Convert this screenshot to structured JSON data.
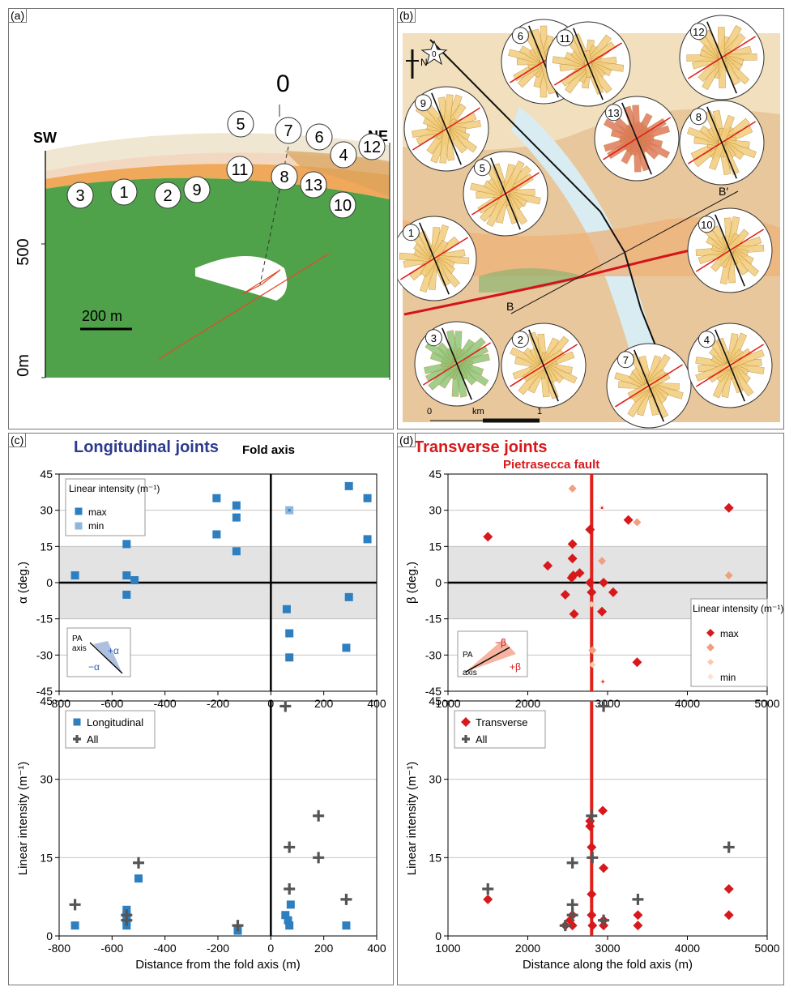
{
  "panel_a": {
    "label": "(a)",
    "sw": "SW",
    "ne": "NE",
    "zero": "0",
    "y500": "500",
    "y0": "0m",
    "scale": "200 m",
    "stations": [
      "3",
      "1",
      "2",
      "9",
      "5",
      "11",
      "7",
      "6",
      "8",
      "13",
      "4",
      "12",
      "10"
    ]
  },
  "panel_b": {
    "label": "(b)",
    "north": "N",
    "star": "0",
    "scale_start": "0",
    "scale_unit": "km",
    "scale_end": "1",
    "B": "B",
    "Bprime": "B′",
    "roses": [
      "6",
      "11",
      "12",
      "9",
      "13",
      "8",
      "5",
      "1",
      "10",
      "3",
      "2",
      "7",
      "4"
    ]
  },
  "chart_data": [
    {
      "type": "scatter",
      "panel": "(c)",
      "title": "Longitudinal joints",
      "annotation": "Fold axis",
      "xlim": [
        -800,
        400
      ],
      "ylim": [
        -45,
        45
      ],
      "ylabel": "α (deg.)",
      "xticks": [
        "-800",
        "-600",
        "-400",
        "-200",
        "0",
        "200",
        "400"
      ],
      "yticks": [
        "45",
        "30",
        "15",
        "0",
        "-15",
        "-30",
        "-45"
      ],
      "legend_title": "Linear intensity (m⁻¹)",
      "legend": [
        "max",
        "min"
      ],
      "inset": {
        "pa": "PA",
        "axis": "axis",
        "plus": "+α",
        "minus": "−α"
      },
      "colors": {
        "max": "#2e7fc0",
        "min": "#8fb7de"
      },
      "series": [
        {
          "name": "max",
          "points": [
            [
              -740,
              3
            ],
            [
              -545,
              16
            ],
            [
              -545,
              3
            ],
            [
              -545,
              -5
            ],
            [
              -515,
              1
            ],
            [
              -205,
              35
            ],
            [
              -205,
              20
            ],
            [
              -130,
              32
            ],
            [
              -130,
              27
            ],
            [
              -130,
              13
            ],
            [
              295,
              40
            ],
            [
              365,
              35
            ],
            [
              365,
              18
            ],
            [
              60,
              -11
            ],
            [
              70,
              -21
            ],
            [
              70,
              -31
            ],
            [
              295,
              -6
            ],
            [
              285,
              -27
            ]
          ]
        },
        {
          "name": "min",
          "points": [
            [
              70,
              30
            ]
          ]
        }
      ]
    },
    {
      "type": "scatter",
      "panel": "(c)",
      "xlim": [
        -800,
        400
      ],
      "ylim": [
        0,
        45
      ],
      "xlabel": "Distance from the fold axis (m)",
      "ylabel": "Linear intensity (m⁻¹)",
      "xticks": [
        "-800",
        "-600",
        "-400",
        "-200",
        "0",
        "200",
        "400"
      ],
      "yticks": [
        "45",
        "30",
        "15",
        "0"
      ],
      "legend": [
        "Longitudinal",
        "All"
      ],
      "series": [
        {
          "name": "Longitudinal",
          "points": [
            [
              -740,
              2
            ],
            [
              -545,
              5
            ],
            [
              -545,
              4
            ],
            [
              -545,
              3
            ],
            [
              -545,
              2
            ],
            [
              -500,
              11
            ],
            [
              -125,
              1
            ],
            [
              55,
              4
            ],
            [
              65,
              3
            ],
            [
              70,
              2
            ],
            [
              75,
              6
            ],
            [
              285,
              2
            ]
          ]
        },
        {
          "name": "All",
          "points": [
            [
              -740,
              6
            ],
            [
              -545,
              4
            ],
            [
              -545,
              3
            ],
            [
              -500,
              14
            ],
            [
              -125,
              2
            ],
            [
              55,
              44
            ],
            [
              70,
              17
            ],
            [
              70,
              9
            ],
            [
              180,
              23
            ],
            [
              180,
              15
            ],
            [
              285,
              7
            ]
          ]
        }
      ]
    },
    {
      "type": "scatter",
      "panel": "(d)",
      "title": "Transverse joints",
      "annotation": "Pietrasecca fault",
      "xlim": [
        1000,
        5000
      ],
      "ylim": [
        -45,
        45
      ],
      "ylabel": "β (deg.)",
      "xticks": [
        "1000",
        "2000",
        "3000",
        "4000",
        "5000"
      ],
      "yticks": [
        "45",
        "30",
        "15",
        "0",
        "-15",
        "-30",
        "-45"
      ],
      "fault_x": 2800,
      "legend_title": "Linear intensity (m⁻¹)",
      "legend": [
        "max",
        "",
        "",
        "min"
      ],
      "inset": {
        "pa": "PA",
        "axis": "axis",
        "plus": "+β",
        "minus": "−β"
      },
      "colors": {
        "max": "#d7191c",
        "fault": "#e0201b"
      },
      "series": [
        {
          "name": "max",
          "points": [
            [
              1500,
              19
            ],
            [
              2250,
              7
            ],
            [
              2470,
              -5
            ],
            [
              2560,
              16
            ],
            [
              2560,
              10
            ],
            [
              2550,
              2
            ],
            [
              2570,
              3
            ],
            [
              2580,
              -13
            ],
            [
              2650,
              4
            ],
            [
              2780,
              22
            ],
            [
              2780,
              0
            ],
            [
              2800,
              -4
            ],
            [
              2930,
              -12
            ],
            [
              2950,
              0
            ],
            [
              3070,
              -4
            ],
            [
              3260,
              26
            ],
            [
              3370,
              -33
            ],
            [
              4520,
              31
            ]
          ]
        },
        {
          "name": "mid",
          "points": [
            [
              2560,
              39
            ],
            [
              2930,
              9
            ],
            [
              3370,
              25
            ],
            [
              4520,
              3
            ],
            [
              2810,
              -28
            ]
          ]
        },
        {
          "name": "small",
          "points": [
            [
              2810,
              -34
            ],
            [
              2800,
              -9
            ]
          ]
        },
        {
          "name": "min",
          "points": [
            [
              2930,
              31
            ],
            [
              2940,
              -41
            ]
          ]
        }
      ]
    },
    {
      "type": "scatter",
      "panel": "(d)",
      "xlim": [
        1000,
        5000
      ],
      "ylim": [
        0,
        45
      ],
      "xlabel": "Distance along the fold axis (m)",
      "ylabel": "Linear intensity (m⁻¹)",
      "xticks": [
        "1000",
        "2000",
        "3000",
        "4000",
        "5000"
      ],
      "yticks": [
        "45",
        "30",
        "15",
        "0"
      ],
      "legend": [
        "Transverse",
        "All"
      ],
      "series": [
        {
          "name": "Transverse",
          "points": [
            [
              1500,
              7
            ],
            [
              2470,
              2
            ],
            [
              2530,
              3
            ],
            [
              2560,
              2
            ],
            [
              2560,
              4
            ],
            [
              2780,
              22
            ],
            [
              2780,
              21
            ],
            [
              2800,
              17
            ],
            [
              2800,
              8
            ],
            [
              2800,
              4
            ],
            [
              2810,
              2
            ],
            [
              2940,
              24
            ],
            [
              2950,
              13
            ],
            [
              2950,
              3
            ],
            [
              2950,
              2
            ],
            [
              3380,
              4
            ],
            [
              3380,
              2
            ],
            [
              4520,
              9
            ],
            [
              4520,
              4
            ]
          ]
        },
        {
          "name": "All",
          "points": [
            [
              1500,
              9
            ],
            [
              2470,
              2
            ],
            [
              2560,
              14
            ],
            [
              2560,
              6
            ],
            [
              2560,
              4
            ],
            [
              2800,
              23
            ],
            [
              2810,
              15
            ],
            [
              2950,
              44
            ],
            [
              2950,
              3
            ],
            [
              3380,
              7
            ],
            [
              4520,
              17
            ]
          ]
        }
      ]
    }
  ]
}
